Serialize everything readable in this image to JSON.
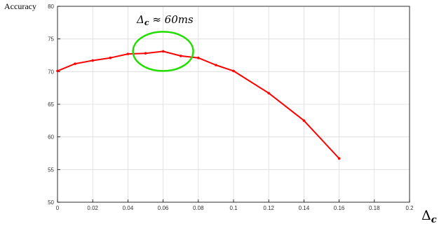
{
  "chart_data": {
    "type": "line",
    "title": "",
    "ylabel": "Accuracy",
    "xlabel": {
      "symbol": "Δ",
      "subscript": "c"
    },
    "xlim": [
      0,
      0.2
    ],
    "ylim": [
      50,
      80
    ],
    "grid": true,
    "xticks": [
      "0",
      "0.02",
      "0.04",
      "0.06",
      "0.08",
      "0.1",
      "0.12",
      "0.14",
      "0.16",
      "0.18",
      "0.2"
    ],
    "xtick_values": [
      0,
      0.02,
      0.04,
      0.06,
      0.08,
      0.1,
      0.12,
      0.14,
      0.16,
      0.18,
      0.2
    ],
    "yticks": [
      "50",
      "55",
      "60",
      "65",
      "70",
      "75",
      "80"
    ],
    "ytick_values": [
      50,
      55,
      60,
      65,
      70,
      75,
      80
    ],
    "series": [
      {
        "color": "#ff0000",
        "x": [
          0,
          0.01,
          0.02,
          0.03,
          0.04,
          0.05,
          0.06,
          0.07,
          0.08,
          0.09,
          0.1,
          0.12,
          0.14,
          0.16
        ],
        "y": [
          70.1,
          71.2,
          71.7,
          72.1,
          72.7,
          72.8,
          73.1,
          72.4,
          72.1,
          71.0,
          70.1,
          66.7,
          62.5,
          56.7
        ]
      }
    ],
    "annotation": {
      "symbol": "Δ",
      "subscript": "c",
      "text": " ≈ 60ms",
      "highlight_x": 0.06,
      "highlight_y": 73.1,
      "highlight_color": "#22dd00"
    }
  }
}
